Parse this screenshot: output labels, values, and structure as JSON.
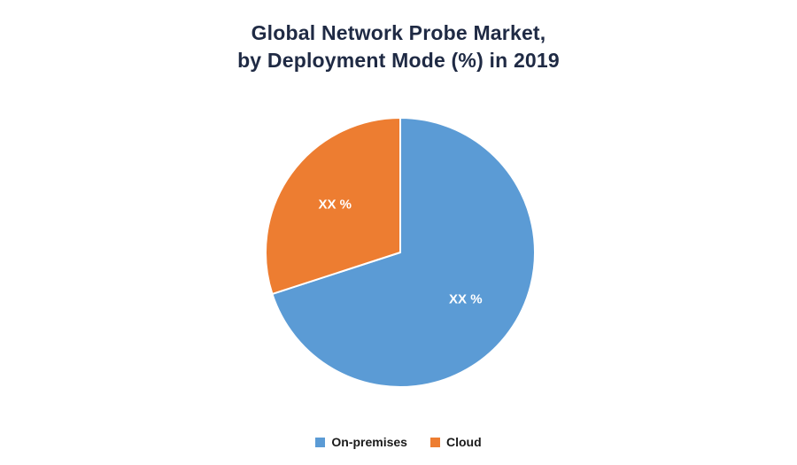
{
  "title": {
    "line1": "Global Network Probe Market,",
    "line2": "by Deployment Mode (%) in 2019"
  },
  "colors": {
    "title_text": "#1F2A44",
    "on_premises": "#5B9BD5",
    "cloud": "#ED7D31",
    "slice_label": "#FFFFFF",
    "background": "#FFFFFF",
    "slice_separator": "#FFFFFF"
  },
  "chart_data": {
    "type": "pie",
    "title": "Global Network Probe Market, by Deployment Mode (%) in 2019",
    "labels": [
      "On-premises",
      "Cloud"
    ],
    "values": [
      70,
      30
    ],
    "value_display": [
      "XX %",
      "XX %"
    ],
    "colors": [
      "#5B9BD5",
      "#ED7D31"
    ],
    "start_angle_deg": -90,
    "direction": "clockwise",
    "legend_position": "bottom"
  },
  "legend": {
    "items": [
      {
        "label": "On-premises",
        "color": "#5B9BD5"
      },
      {
        "label": "Cloud",
        "color": "#ED7D31"
      }
    ]
  }
}
